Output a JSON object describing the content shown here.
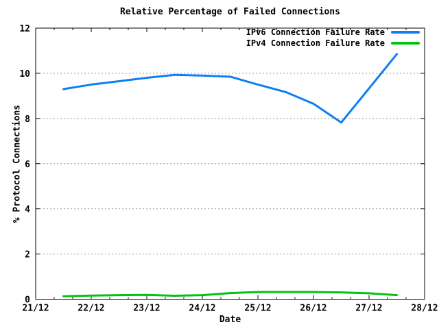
{
  "chart_data": {
    "type": "line",
    "title": "Relative Percentage of Failed Connections",
    "xlabel": "Date",
    "ylabel": "% Protocol Connections",
    "xlim": [
      0,
      7
    ],
    "ylim": [
      0,
      12
    ],
    "x_tick_labels": [
      "21/12",
      "22/12",
      "23/12",
      "24/12",
      "25/12",
      "26/12",
      "27/12",
      "28/12"
    ],
    "x_tick_positions": [
      0,
      1,
      2,
      3,
      4,
      5,
      6,
      7
    ],
    "x_minor_ticks_per_interval": 3,
    "y_ticks": [
      0,
      2,
      4,
      6,
      8,
      10,
      12
    ],
    "y_gridlines": [
      2,
      4,
      6,
      8,
      10
    ],
    "grid": "horizontal dashed",
    "legend_position": "top-right inside plot",
    "x": [
      0.5,
      1,
      1.5,
      2,
      2.5,
      3,
      3.5,
      4,
      4.5,
      5,
      5.5,
      6,
      6.5
    ],
    "series": [
      {
        "name": "IPv6 Connection Failure Rate",
        "color": "#0d7ff2",
        "values": [
          9.3,
          9.5,
          9.65,
          9.8,
          9.93,
          9.9,
          9.85,
          9.5,
          9.17,
          8.65,
          7.82,
          9.33,
          10.85
        ]
      },
      {
        "name": "IPv4 Connection Failure Rate",
        "color": "#00c40e",
        "values": [
          0.13,
          0.16,
          0.18,
          0.19,
          0.15,
          0.18,
          0.27,
          0.32,
          0.32,
          0.32,
          0.3,
          0.26,
          0.18
        ]
      }
    ],
    "colors": {
      "axis": "#000000",
      "grid": "#999999",
      "background": "#ffffff",
      "text": "#000000"
    }
  }
}
